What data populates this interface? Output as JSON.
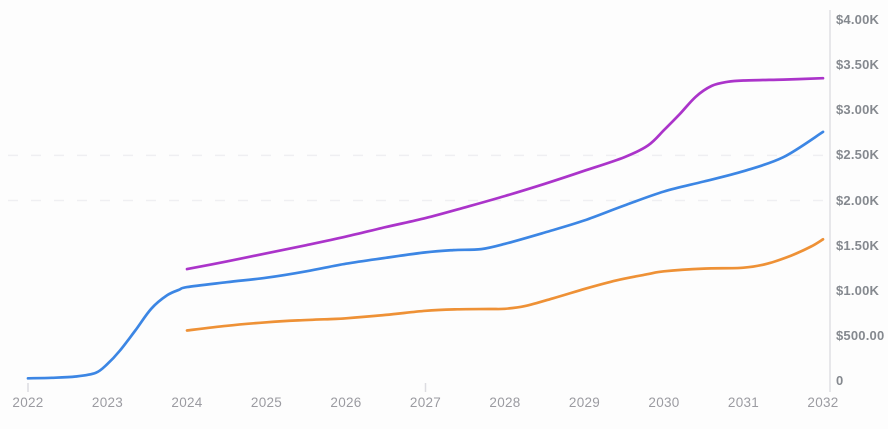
{
  "chart_data": {
    "type": "line",
    "title": "",
    "xlabel": "",
    "ylabel": "",
    "legend": "none",
    "background": "#fdfdfd",
    "x_axis": {
      "range": [
        2022,
        2032
      ],
      "tick_labels": [
        "2022",
        "2023",
        "2024",
        "2025",
        "2026",
        "2027",
        "2028",
        "2029",
        "2030",
        "2031",
        "2032"
      ],
      "tick_values": [
        2022,
        2023,
        2024,
        2025,
        2026,
        2027,
        2028,
        2029,
        2030,
        2031,
        2032
      ],
      "tick_marks_visible_at": [
        2022,
        2027
      ]
    },
    "y_axis": {
      "side": "right",
      "range": [
        0,
        4000
      ],
      "grid_style": "dashed",
      "grid_values": [
        2500,
        2000
      ],
      "ticks": [
        {
          "value": 4000,
          "label": "$4.00K"
        },
        {
          "value": 3500,
          "label": "$3.50K"
        },
        {
          "value": 3000,
          "label": "$3.00K"
        },
        {
          "value": 2500,
          "label": "$2.50K"
        },
        {
          "value": 2000,
          "label": "$2.00K"
        },
        {
          "value": 1500,
          "label": "$1.50K"
        },
        {
          "value": 1000,
          "label": "$1.00K"
        },
        {
          "value": 500,
          "label": "$500.00"
        },
        {
          "value": 0,
          "label": "0"
        }
      ]
    },
    "series": [
      {
        "name": "blue-series",
        "color": "#3c86e4",
        "points": [
          [
            2022.0,
            30
          ],
          [
            2022.3,
            35
          ],
          [
            2022.6,
            50
          ],
          [
            2022.85,
            90
          ],
          [
            2023.0,
            190
          ],
          [
            2023.15,
            330
          ],
          [
            2023.35,
            560
          ],
          [
            2023.55,
            800
          ],
          [
            2023.75,
            950
          ],
          [
            2023.9,
            1010
          ],
          [
            2024.0,
            1040
          ],
          [
            2024.5,
            1095
          ],
          [
            2025.0,
            1145
          ],
          [
            2025.5,
            1215
          ],
          [
            2026.0,
            1300
          ],
          [
            2026.5,
            1365
          ],
          [
            2027.0,
            1425
          ],
          [
            2027.35,
            1450
          ],
          [
            2027.7,
            1462
          ],
          [
            2028.0,
            1520
          ],
          [
            2028.5,
            1645
          ],
          [
            2029.0,
            1780
          ],
          [
            2029.5,
            1945
          ],
          [
            2030.0,
            2100
          ],
          [
            2030.5,
            2210
          ],
          [
            2031.0,
            2325
          ],
          [
            2031.5,
            2480
          ],
          [
            2032.0,
            2760
          ]
        ]
      },
      {
        "name": "orange-series",
        "color": "#ee9136",
        "points": [
          [
            2024.0,
            560
          ],
          [
            2024.5,
            612
          ],
          [
            2025.0,
            650
          ],
          [
            2025.4,
            672
          ],
          [
            2025.8,
            686
          ],
          [
            2026.0,
            695
          ],
          [
            2026.5,
            732
          ],
          [
            2027.0,
            778
          ],
          [
            2027.4,
            795
          ],
          [
            2027.8,
            798
          ],
          [
            2028.0,
            800
          ],
          [
            2028.25,
            830
          ],
          [
            2028.6,
            915
          ],
          [
            2029.0,
            1020
          ],
          [
            2029.4,
            1115
          ],
          [
            2029.8,
            1185
          ],
          [
            2030.0,
            1215
          ],
          [
            2030.5,
            1245
          ],
          [
            2031.0,
            1255
          ],
          [
            2031.3,
            1300
          ],
          [
            2031.6,
            1390
          ],
          [
            2031.85,
            1490
          ],
          [
            2032.0,
            1570
          ]
        ]
      },
      {
        "name": "purple-series",
        "color": "#ab34ca",
        "points": [
          [
            2024.0,
            1240
          ],
          [
            2024.5,
            1325
          ],
          [
            2025.0,
            1415
          ],
          [
            2025.5,
            1505
          ],
          [
            2026.0,
            1600
          ],
          [
            2026.5,
            1705
          ],
          [
            2027.0,
            1805
          ],
          [
            2027.5,
            1925
          ],
          [
            2028.0,
            2050
          ],
          [
            2028.5,
            2185
          ],
          [
            2029.0,
            2330
          ],
          [
            2029.5,
            2480
          ],
          [
            2029.8,
            2610
          ],
          [
            2030.0,
            2780
          ],
          [
            2030.2,
            2960
          ],
          [
            2030.4,
            3150
          ],
          [
            2030.6,
            3270
          ],
          [
            2030.8,
            3315
          ],
          [
            2031.0,
            3330
          ],
          [
            2031.5,
            3340
          ],
          [
            2032.0,
            3355
          ]
        ]
      }
    ],
    "style_colors": {
      "axis_line": "#e7e7ea",
      "grid_line": "#efeff2",
      "tick_mark": "#dcdce1",
      "y_label_text": "#85898f",
      "x_label_text": "#9b9ba1"
    }
  }
}
